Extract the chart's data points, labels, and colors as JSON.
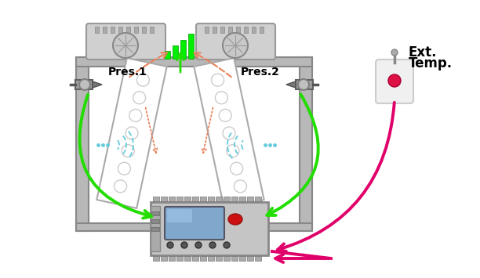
{
  "bg_color": "#ffffff",
  "green_color": "#22dd00",
  "pink_color": "#e0006a",
  "orange_color": "#e8825a",
  "cyan_color": "#66ccdd",
  "gray_frame": "#c0c0c0",
  "gray_dark": "#888888",
  "gray_light": "#e8e8e8",
  "text_pres1": "Pres.1",
  "text_pres2": "Pres.2",
  "text_ext": "Ext.",
  "text_temp": "Temp.",
  "font_size_label": 10,
  "lw_green": 2.8,
  "lw_pink": 2.8
}
